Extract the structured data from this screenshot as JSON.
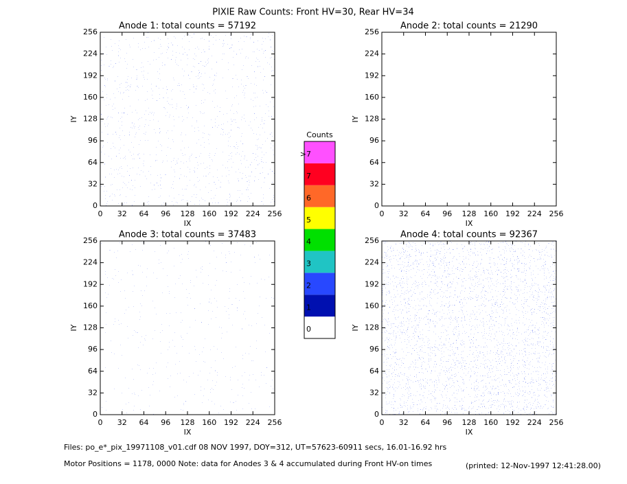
{
  "title": "PIXIE Raw Counts:  Front HV=30, Rear HV=34",
  "footer": {
    "files": "Files: po_e*_pix_19971108_v01.cdf    08 NOV 1997, DOY=312, UT=57623-60911 secs, 16.01-16.92 hrs",
    "motor": "Motor Positions = 1178, 0000    Note: data for Anodes 3 & 4 accumulated during Front HV-on times",
    "printed": "(printed: 12-Nov-1997 12:41:28.00)"
  },
  "chart_data": [
    {
      "type": "heatmap",
      "title": "Anode 1: total counts = 57192",
      "xlabel": "IX",
      "ylabel": "IY",
      "xlim": [
        0,
        256
      ],
      "ylim": [
        0,
        256
      ],
      "xticks": [
        0,
        32,
        64,
        96,
        128,
        160,
        192,
        224,
        256
      ],
      "yticks": [
        0,
        32,
        64,
        96,
        128,
        160,
        192,
        224,
        256
      ]
    },
    {
      "type": "heatmap",
      "title": "Anode 2: total counts = 21290",
      "xlabel": "IX",
      "ylabel": "IY",
      "xlim": [
        0,
        256
      ],
      "ylim": [
        0,
        256
      ],
      "xticks": [
        0,
        32,
        64,
        96,
        128,
        160,
        192,
        224,
        256
      ],
      "yticks": [
        0,
        32,
        64,
        96,
        128,
        160,
        192,
        224,
        256
      ]
    },
    {
      "type": "heatmap",
      "title": "Anode 3: total counts = 37483",
      "xlabel": "IX",
      "ylabel": "IY",
      "xlim": [
        0,
        256
      ],
      "ylim": [
        0,
        256
      ],
      "xticks": [
        0,
        32,
        64,
        96,
        128,
        160,
        192,
        224,
        256
      ],
      "yticks": [
        0,
        32,
        64,
        96,
        128,
        160,
        192,
        224,
        256
      ]
    },
    {
      "type": "heatmap",
      "title": "Anode 4: total counts = 92367",
      "xlabel": "IX",
      "ylabel": "IY",
      "xlim": [
        0,
        256
      ],
      "ylim": [
        0,
        256
      ],
      "xticks": [
        0,
        32,
        64,
        96,
        128,
        160,
        192,
        224,
        256
      ],
      "yticks": [
        0,
        32,
        64,
        96,
        128,
        160,
        192,
        224,
        256
      ]
    },
    {
      "type": "colorbar",
      "title": "Counts",
      "categories": [
        "0",
        "1",
        "2",
        "3",
        "4",
        "5",
        "6",
        "7",
        ">7"
      ],
      "colors": [
        "#ffffff",
        "#0010b0",
        "#2848ff",
        "#20c4c4",
        "#00e000",
        "#ffff00",
        "#ff6828",
        "#ff0020",
        "#ff50ff"
      ]
    }
  ]
}
